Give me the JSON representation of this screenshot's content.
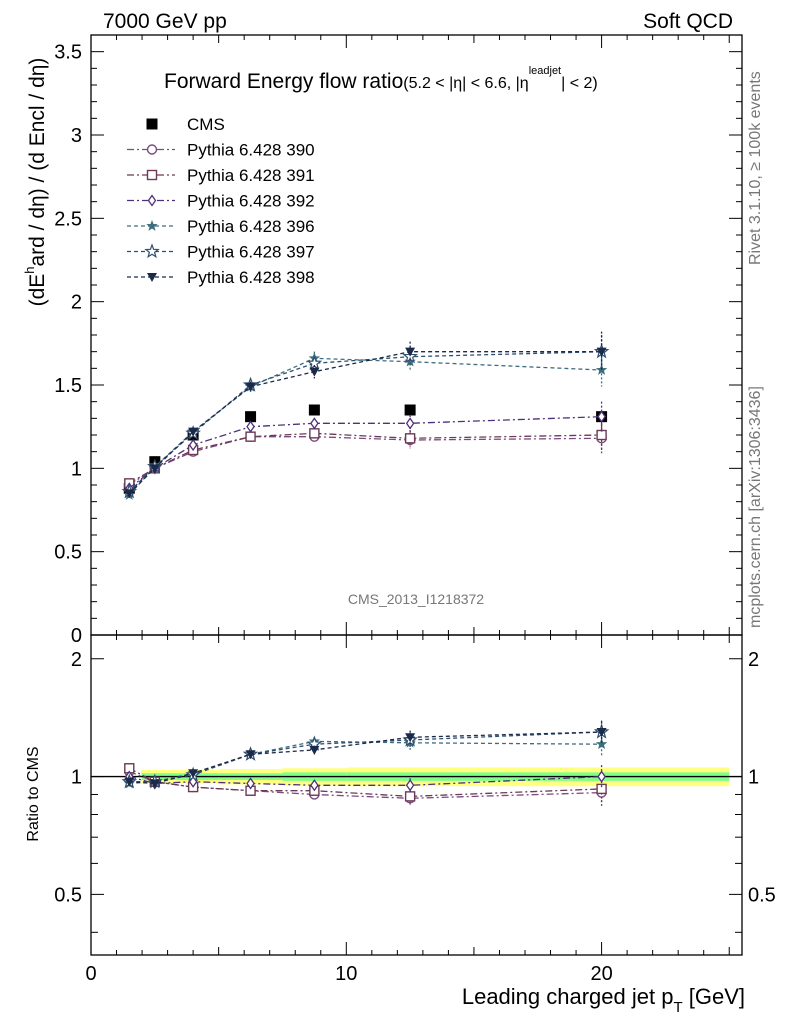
{
  "header": {
    "energy_label": "7000 GeV pp",
    "process_label": "Soft QCD"
  },
  "side_labels": {
    "rivet": "Rivet 3.1.10, ≥ 100k events",
    "mcplots": "mcplots.cern.ch [arXiv:1306:3436]"
  },
  "chart_data": [
    {
      "type": "scatter",
      "panel": "main",
      "title": "Forward Energy flow ratio",
      "title_condition": "(5.2 < |η| < 6.6, |η",
      "title_superscript": "leadjet",
      "title_condition_end": "| < 2)",
      "ylabel_parts": [
        "(dE",
        "h",
        "ard / dη) / (d Encl / dη)"
      ],
      "watermark": "CMS_2013_I1218372",
      "xlim": [
        0,
        25.5
      ],
      "ylim": [
        0,
        3.6
      ],
      "ytick_labels": [
        "0",
        "0.5",
        "1",
        "1.5",
        "2",
        "2.5",
        "3",
        "3.5"
      ],
      "legend_position": "top-left",
      "series": [
        {
          "name": "CMS",
          "kind": "data",
          "color": "#000000",
          "marker": "square-filled",
          "x": [
            1.5,
            2.5,
            4.0,
            6.25,
            8.75,
            12.5,
            20.0
          ],
          "y": [
            0.88,
            1.04,
            1.2,
            1.31,
            1.35,
            1.35,
            1.31
          ]
        },
        {
          "name": "Pythia 6.428 390",
          "color": "#7b4a7f",
          "marker": "circle-open",
          "dash": "7,3,2,3",
          "x": [
            1.5,
            2.5,
            4.0,
            6.25,
            8.75,
            12.5,
            20.0
          ],
          "y": [
            0.9,
            1.0,
            1.1,
            1.19,
            1.19,
            1.17,
            1.18
          ],
          "err": [
            0.02,
            0.02,
            0.02,
            0.02,
            0.03,
            0.05,
            0.09
          ]
        },
        {
          "name": "Pythia 6.428 391",
          "color": "#6b3a55",
          "marker": "square-open",
          "dash": "7,3,2,3",
          "x": [
            1.5,
            2.5,
            4.0,
            6.25,
            8.75,
            12.5,
            20.0
          ],
          "y": [
            0.91,
            1.0,
            1.11,
            1.19,
            1.21,
            1.18,
            1.2
          ],
          "err": [
            0.02,
            0.02,
            0.02,
            0.02,
            0.03,
            0.05,
            0.09
          ]
        },
        {
          "name": "Pythia 6.428 392",
          "color": "#50307a",
          "marker": "diamond-open",
          "dash": "7,3,2,3",
          "x": [
            1.5,
            2.5,
            4.0,
            6.25,
            8.75,
            12.5,
            20.0
          ],
          "y": [
            0.88,
            1.0,
            1.14,
            1.25,
            1.27,
            1.27,
            1.31
          ],
          "err": [
            0.02,
            0.02,
            0.02,
            0.02,
            0.03,
            0.05,
            0.09
          ]
        },
        {
          "name": "Pythia 6.428 396",
          "color": "#3e6e7e",
          "marker": "star-filled",
          "dash": "4,3",
          "x": [
            1.5,
            2.5,
            4.0,
            6.25,
            8.75,
            12.5,
            20.0
          ],
          "y": [
            0.84,
            1.01,
            1.22,
            1.49,
            1.66,
            1.64,
            1.59
          ],
          "err": [
            0.02,
            0.02,
            0.02,
            0.03,
            0.04,
            0.06,
            0.1
          ]
        },
        {
          "name": "Pythia 6.428 397",
          "color": "#2f4f70",
          "marker": "star-open",
          "dash": "4,3",
          "x": [
            1.5,
            2.5,
            4.0,
            6.25,
            8.75,
            12.5,
            20.0
          ],
          "y": [
            0.86,
            1.01,
            1.21,
            1.5,
            1.63,
            1.67,
            1.7
          ],
          "err": [
            0.02,
            0.02,
            0.02,
            0.03,
            0.04,
            0.06,
            0.1
          ]
        },
        {
          "name": "Pythia 6.428 398",
          "color": "#1c2a4a",
          "marker": "triangle-down-filled",
          "dash": "4,3",
          "x": [
            1.5,
            2.5,
            4.0,
            6.25,
            8.75,
            12.5,
            20.0
          ],
          "y": [
            0.85,
            1.0,
            1.22,
            1.49,
            1.58,
            1.7,
            1.7
          ],
          "err": [
            0.02,
            0.02,
            0.02,
            0.03,
            0.04,
            0.06,
            0.12
          ]
        }
      ]
    },
    {
      "type": "scatter",
      "panel": "ratio",
      "ylabel": "Ratio to CMS",
      "xlabel_parts": [
        "Leading charged jet p",
        "T",
        " [GeV]"
      ],
      "xlim": [
        0,
        25.5
      ],
      "ylim": [
        0.35,
        2.3
      ],
      "ytick_labels": [
        "0.5",
        "1",
        "2"
      ],
      "xtick_labels": [
        "0",
        "10",
        "20"
      ],
      "band_colors": {
        "inner": "#7fff8a",
        "outer": "#ffff80"
      },
      "band_x_edges": [
        1.0,
        2.0,
        3.0,
        5.0,
        7.5,
        10.0,
        15.0,
        25.0
      ],
      "band_inner": [
        0.025,
        0.02,
        0.02,
        0.02,
        0.025,
        0.025,
        0.025
      ],
      "band_outer": [
        0.045,
        0.04,
        0.04,
        0.045,
        0.05,
        0.055,
        0.055
      ],
      "series": [
        {
          "name": "Pythia 6.428 390",
          "x": [
            1.5,
            2.5,
            4.0,
            6.25,
            8.75,
            12.5,
            20.0
          ],
          "y": [
            1.03,
            0.97,
            0.94,
            0.92,
            0.9,
            0.88,
            0.91
          ],
          "err": [
            0.02,
            0.02,
            0.02,
            0.02,
            0.03,
            0.04,
            0.07
          ]
        },
        {
          "name": "Pythia 6.428 391",
          "x": [
            1.5,
            2.5,
            4.0,
            6.25,
            8.75,
            12.5,
            20.0
          ],
          "y": [
            1.05,
            0.97,
            0.94,
            0.92,
            0.92,
            0.89,
            0.93
          ],
          "err": [
            0.02,
            0.02,
            0.02,
            0.02,
            0.03,
            0.04,
            0.07
          ]
        },
        {
          "name": "Pythia 6.428 392",
          "x": [
            1.5,
            2.5,
            4.0,
            6.25,
            8.75,
            12.5,
            20.0
          ],
          "y": [
            1.0,
            0.96,
            0.97,
            0.96,
            0.95,
            0.95,
            1.0
          ],
          "err": [
            0.02,
            0.02,
            0.02,
            0.02,
            0.03,
            0.04,
            0.07
          ]
        },
        {
          "name": "Pythia 6.428 396",
          "x": [
            1.5,
            2.5,
            4.0,
            6.25,
            8.75,
            12.5,
            20.0
          ],
          "y": [
            0.96,
            0.97,
            1.02,
            1.14,
            1.23,
            1.22,
            1.21
          ],
          "err": [
            0.02,
            0.02,
            0.02,
            0.02,
            0.03,
            0.05,
            0.08
          ]
        },
        {
          "name": "Pythia 6.428 397",
          "x": [
            1.5,
            2.5,
            4.0,
            6.25,
            8.75,
            12.5,
            20.0
          ],
          "y": [
            0.97,
            0.97,
            1.01,
            1.14,
            1.21,
            1.24,
            1.3
          ],
          "err": [
            0.02,
            0.02,
            0.02,
            0.02,
            0.03,
            0.05,
            0.08
          ]
        },
        {
          "name": "Pythia 6.428 398",
          "x": [
            1.5,
            2.5,
            4.0,
            6.25,
            8.75,
            12.5,
            20.0
          ],
          "y": [
            0.97,
            0.96,
            1.02,
            1.14,
            1.17,
            1.26,
            1.3
          ],
          "err": [
            0.02,
            0.02,
            0.02,
            0.02,
            0.03,
            0.05,
            0.09
          ]
        }
      ]
    }
  ]
}
